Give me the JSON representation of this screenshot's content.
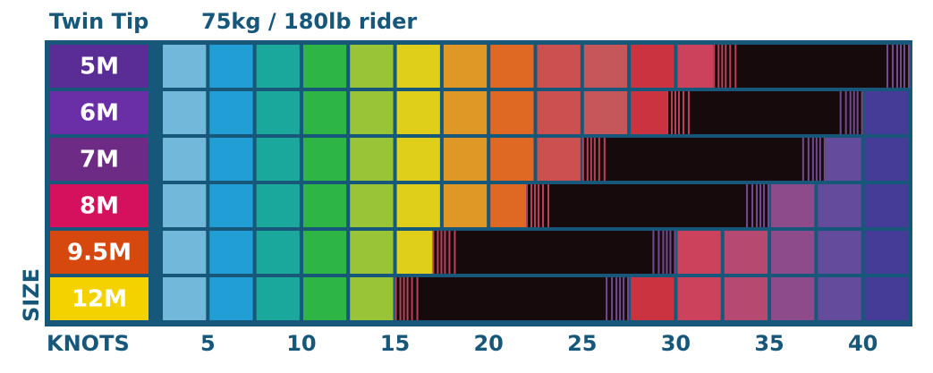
{
  "chart_data": {
    "type": "range",
    "title": "Twin Tip",
    "subtitle": "75kg / 180lb rider",
    "ylabel": "SIZE",
    "xlabel": "KNOTS",
    "categories": [
      "5M",
      "6M",
      "7M",
      "8M",
      "9.5M",
      "12M"
    ],
    "category_colors": [
      "#5a2d96",
      "#6a2fa6",
      "#6d2b85",
      "#d5105d",
      "#d7480f",
      "#f4d200"
    ],
    "category_text_colors": [
      "#ffffff",
      "#ffffff",
      "#ffffff",
      "#ffffff",
      "#ffffff",
      "#ffffff"
    ],
    "low": [
      32,
      29.5,
      25,
      22,
      17,
      15
    ],
    "high": [
      42.5,
      40,
      38,
      35,
      30,
      27.5
    ],
    "range_color": "#160a0c",
    "cell_colors": [
      "#7cc3e6",
      "#21a6df",
      "#1bb0a0",
      "#30c040",
      "#a8d030",
      "#f6dd10",
      "#f5a01c",
      "#f56a18",
      "#e0504a",
      "#d85858",
      "#e0303a",
      "#e0405a",
      "#c8486e",
      "#9a4a8e",
      "#6e4a9e",
      "#4a3a9a"
    ],
    "xlim": [
      2.5,
      42.5
    ],
    "xticks": [
      5,
      10,
      15,
      20,
      25,
      30,
      35,
      40
    ]
  }
}
